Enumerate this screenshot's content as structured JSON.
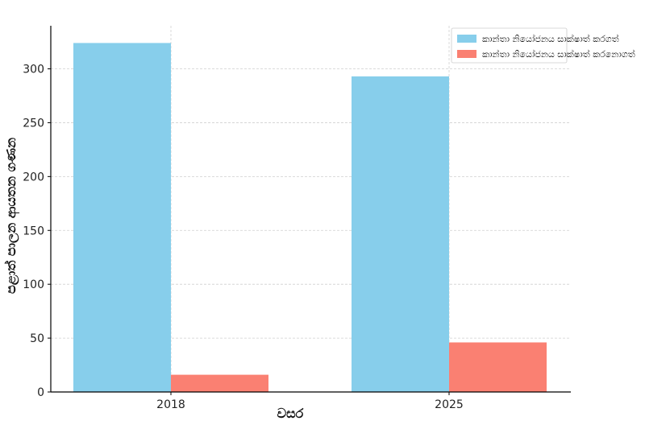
{
  "chart_data": {
    "type": "bar",
    "categories": [
      "2018",
      "2025"
    ],
    "series": [
      {
        "name": "කාන්තා නියෝජනය සාක්ෂාත් කරගත්",
        "values": [
          324,
          293
        ],
        "color": "#87CEEB"
      },
      {
        "name": "කාන්තා නියෝජනය සාක්ෂාත් කරනොගත්",
        "values": [
          16,
          46
        ],
        "color": "#FA8072"
      }
    ],
    "xlabel": "වසර",
    "ylabel": "පළාත් පාලන ආයතන ගණන",
    "ylim": [
      0,
      340
    ],
    "yticks": [
      0,
      50,
      100,
      150,
      200,
      250,
      300
    ],
    "grid": true,
    "legend_position": "top-right"
  }
}
